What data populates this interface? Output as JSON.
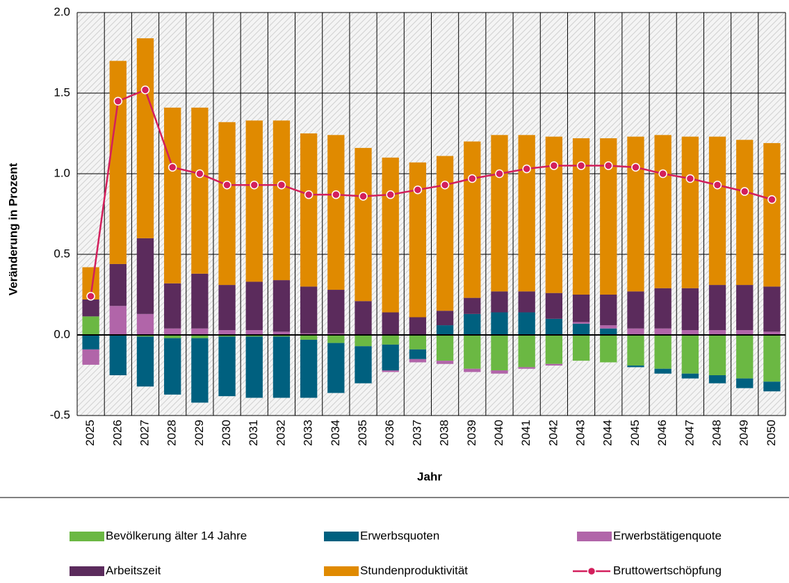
{
  "chart_data": {
    "type": "bar",
    "stacked": true,
    "x_label": "Jahr",
    "y_label": "Veränderung in Prozent",
    "categories": [
      "2025",
      "2026",
      "2027",
      "2028",
      "2029",
      "2030",
      "2031",
      "2032",
      "2033",
      "2034",
      "2035",
      "2036",
      "2037",
      "2038",
      "2039",
      "2040",
      "2041",
      "2042",
      "2043",
      "2044",
      "2045",
      "2046",
      "2047",
      "2048",
      "2049",
      "2050"
    ],
    "series": [
      {
        "name": "Bevölkerung älter 14 Jahre",
        "color": "#6bb843",
        "values": [
          0.115,
          0,
          -0.01,
          -0.02,
          -0.02,
          -0.01,
          -0.01,
          -0.01,
          -0.03,
          -0.05,
          -0.07,
          -0.06,
          -0.09,
          -0.16,
          -0.21,
          -0.22,
          -0.2,
          -0.18,
          -0.16,
          -0.17,
          -0.19,
          -0.21,
          -0.24,
          -0.25,
          -0.27,
          -0.29
        ]
      },
      {
        "name": "Erwerbsquoten",
        "color": "#00607f",
        "values": [
          -0.09,
          -0.25,
          -0.31,
          -0.35,
          -0.4,
          -0.37,
          -0.38,
          -0.38,
          -0.36,
          -0.31,
          -0.23,
          -0.16,
          -0.06,
          0.06,
          0.13,
          0.14,
          0.14,
          0.1,
          0.07,
          0.04,
          -0.01,
          -0.03,
          -0.03,
          -0.05,
          -0.06,
          -0.06
        ]
      },
      {
        "name": "Erwerbstätigenquote",
        "color": "#b165a9",
        "values": [
          -0.095,
          0.18,
          0.13,
          0.04,
          0.04,
          0.03,
          0.03,
          0.02,
          0.01,
          0.01,
          0,
          -0.01,
          -0.02,
          -0.02,
          -0.02,
          -0.02,
          -0.01,
          -0.01,
          0.01,
          0.02,
          0.04,
          0.04,
          0.03,
          0.03,
          0.03,
          0.02
        ]
      },
      {
        "name": "Arbeitszeit",
        "color": "#5b2b5c",
        "values": [
          0.105,
          0.26,
          0.47,
          0.28,
          0.34,
          0.28,
          0.3,
          0.32,
          0.29,
          0.27,
          0.21,
          0.14,
          0.11,
          0.09,
          0.1,
          0.13,
          0.13,
          0.16,
          0.17,
          0.19,
          0.23,
          0.25,
          0.26,
          0.28,
          0.28,
          0.28
        ]
      },
      {
        "name": "Stundenproduktivität",
        "color": "#e08a00",
        "values": [
          0.2,
          1.26,
          1.24,
          1.09,
          1.03,
          1.01,
          1.0,
          0.99,
          0.95,
          0.96,
          0.95,
          0.96,
          0.96,
          0.96,
          0.97,
          0.97,
          0.97,
          0.97,
          0.97,
          0.97,
          0.96,
          0.95,
          0.94,
          0.92,
          0.9,
          0.89
        ]
      },
      {
        "name": "Bruttowertschöpfung",
        "type": "line",
        "color": "#d31f5c",
        "values": [
          0.24,
          1.45,
          1.52,
          1.04,
          1.0,
          0.93,
          0.93,
          0.93,
          0.87,
          0.87,
          0.86,
          0.87,
          0.9,
          0.93,
          0.97,
          1.0,
          1.03,
          1.05,
          1.05,
          1.05,
          1.04,
          1.0,
          0.97,
          0.93,
          0.89,
          0.84
        ]
      }
    ],
    "ylim": [
      -0.5,
      2.0
    ],
    "yticks": [
      -0.5,
      {
        "value": 0,
        "label": "0.0"
      },
      0.5,
      {
        "value": 1,
        "label": "1.0"
      },
      1.5,
      {
        "value": 2,
        "label": "2.0"
      }
    ],
    "grid": true,
    "legend": "bottom"
  }
}
